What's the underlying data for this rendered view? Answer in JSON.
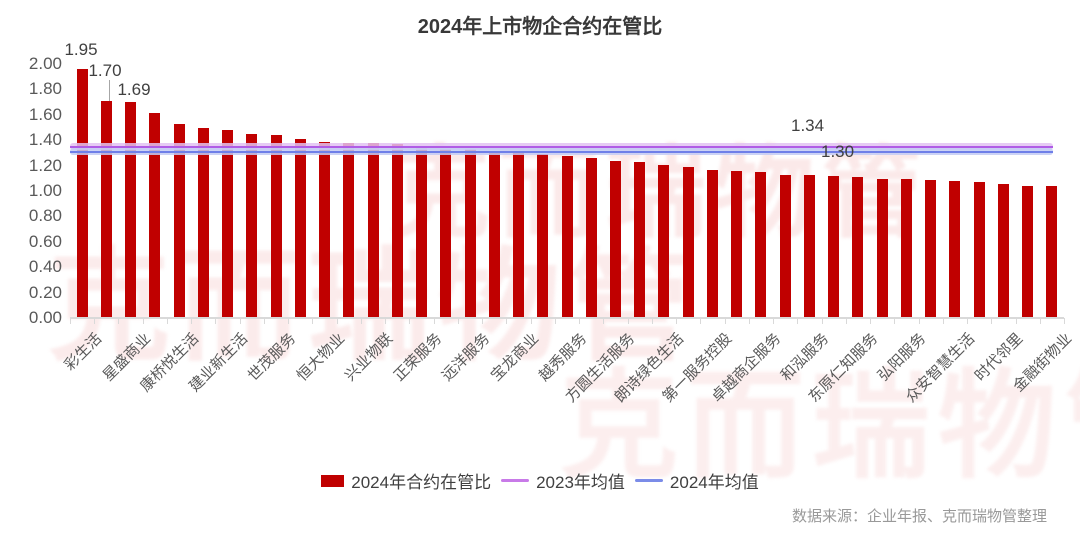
{
  "header": {
    "title": "2024年上市物企合约在管比"
  },
  "footer": {
    "source": "数据来源：企业年报、克而瑞物管整理"
  },
  "watermark": {
    "text": "克而瑞物管",
    "color": "#FBE9E9"
  },
  "colors": {
    "bar": "#C00000",
    "line_2023": "#B05CE6",
    "line_2023_halo": "#E2C2F2",
    "line_2024": "#6F7FE8",
    "line_2024_halo": "#C3CBF5",
    "axis": "#D9D9D9",
    "tick_text": "#595959"
  },
  "chart_data": {
    "type": "bar",
    "title": "2024年上市物企合约在管比",
    "xlabel": "",
    "ylabel": "",
    "ylim": [
      0.0,
      2.0
    ],
    "grid": false,
    "legend_position": "bottom",
    "series_name": "2024年合约在管比",
    "y_ticks": [
      "0.00",
      "0.20",
      "0.40",
      "0.60",
      "0.80",
      "1.00",
      "1.20",
      "1.40",
      "1.60",
      "1.80",
      "2.00"
    ],
    "note_unlabeled": "only every second bar carries an x-axis label in the source image; unlabeled bars have label \"\"",
    "bars": [
      {
        "label": "彩生活",
        "value": 1.95,
        "callout": "1.95"
      },
      {
        "label": "",
        "value": 1.7,
        "callout": "1.70"
      },
      {
        "label": "星盛商业",
        "value": 1.69,
        "callout": "1.69"
      },
      {
        "label": "",
        "value": 1.61
      },
      {
        "label": "康桥悦生活",
        "value": 1.52
      },
      {
        "label": "",
        "value": 1.49
      },
      {
        "label": "建业新生活",
        "value": 1.47
      },
      {
        "label": "",
        "value": 1.44
      },
      {
        "label": "世茂服务",
        "value": 1.43
      },
      {
        "label": "",
        "value": 1.4
      },
      {
        "label": "恒大物业",
        "value": 1.38
      },
      {
        "label": "",
        "value": 1.37
      },
      {
        "label": "兴业物联",
        "value": 1.37
      },
      {
        "label": "",
        "value": 1.36
      },
      {
        "label": "正荣服务",
        "value": 1.33
      },
      {
        "label": "",
        "value": 1.32
      },
      {
        "label": "远洋服务",
        "value": 1.32
      },
      {
        "label": "",
        "value": 1.31
      },
      {
        "label": "宝龙商业",
        "value": 1.3
      },
      {
        "label": "",
        "value": 1.28
      },
      {
        "label": "越秀服务",
        "value": 1.27
      },
      {
        "label": "",
        "value": 1.25
      },
      {
        "label": "方圆生活服务",
        "value": 1.23
      },
      {
        "label": "",
        "value": 1.22
      },
      {
        "label": "朗诗绿色生活",
        "value": 1.2
      },
      {
        "label": "",
        "value": 1.18
      },
      {
        "label": "第一服务控股",
        "value": 1.16
      },
      {
        "label": "",
        "value": 1.15
      },
      {
        "label": "卓越商企服务",
        "value": 1.14
      },
      {
        "label": "",
        "value": 1.12
      },
      {
        "label": "和泓服务",
        "value": 1.12
      },
      {
        "label": "",
        "value": 1.11
      },
      {
        "label": "东原仁知服务",
        "value": 1.1
      },
      {
        "label": "",
        "value": 1.09
      },
      {
        "label": "弘阳服务",
        "value": 1.09
      },
      {
        "label": "",
        "value": 1.08
      },
      {
        "label": "众安智慧生活",
        "value": 1.07
      },
      {
        "label": "",
        "value": 1.06
      },
      {
        "label": "时代邻里",
        "value": 1.05
      },
      {
        "label": "",
        "value": 1.03
      },
      {
        "label": "金融街物业",
        "value": 1.03
      }
    ],
    "ref_lines": [
      {
        "legend": "2023年均值",
        "value": 1.34,
        "label": "1.34",
        "color": "#B05CE6",
        "halo": "#E2C2F2"
      },
      {
        "legend": "2024年均值",
        "value": 1.3,
        "label": "1.30",
        "color": "#6F7FE8",
        "halo": "#C3CBF5"
      }
    ]
  }
}
